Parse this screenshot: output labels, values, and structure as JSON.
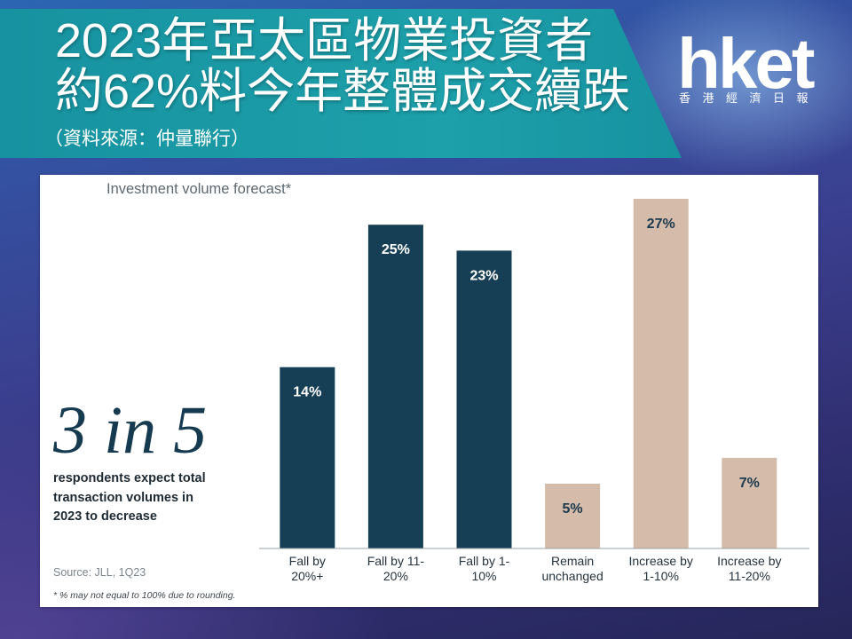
{
  "header": {
    "headline_lines": [
      "2023年亞太區物業投資者",
      "約62%料今年整體成交續跌"
    ],
    "source": "（資料來源：仲量聯行）"
  },
  "logo": {
    "wordmark": "hket",
    "tagline": "香港經濟日報"
  },
  "colors": {
    "banner": "#1da0aa",
    "banner_dark": "#1792a0",
    "callout": "#163a50"
  },
  "chart_data": {
    "type": "bar",
    "title": "Investment volume forecast*",
    "categories": [
      "Fall by 20%+",
      "Fall by 11-20%",
      "Fall by 1-10%",
      "Remain unchanged",
      "Increase by 1-10%",
      "Increase by 11-20%"
    ],
    "values": [
      14,
      25,
      23,
      5,
      27,
      7
    ],
    "data_labels": [
      "14%",
      "25%",
      "23%",
      "5%",
      "27%",
      "7%"
    ],
    "colors": [
      "#163f55",
      "#163f55",
      "#163f55",
      "#d5bba9",
      "#d5bba9",
      "#d5bba9"
    ],
    "data_label_colors": [
      "#ffffff",
      "#ffffff",
      "#ffffff",
      "#1c3a4e",
      "#1c3a4e",
      "#1c3a4e"
    ],
    "ylim": [
      0,
      27
    ],
    "grid": false,
    "legend": "none",
    "callout": {
      "figure": "3 in 5",
      "text_lines": [
        "respondents expect total",
        "transaction volumes in",
        "2023 to decrease"
      ]
    },
    "source": "Source: JLL, 1Q23",
    "footnote": "* % may not equal to 100% due to rounding."
  }
}
